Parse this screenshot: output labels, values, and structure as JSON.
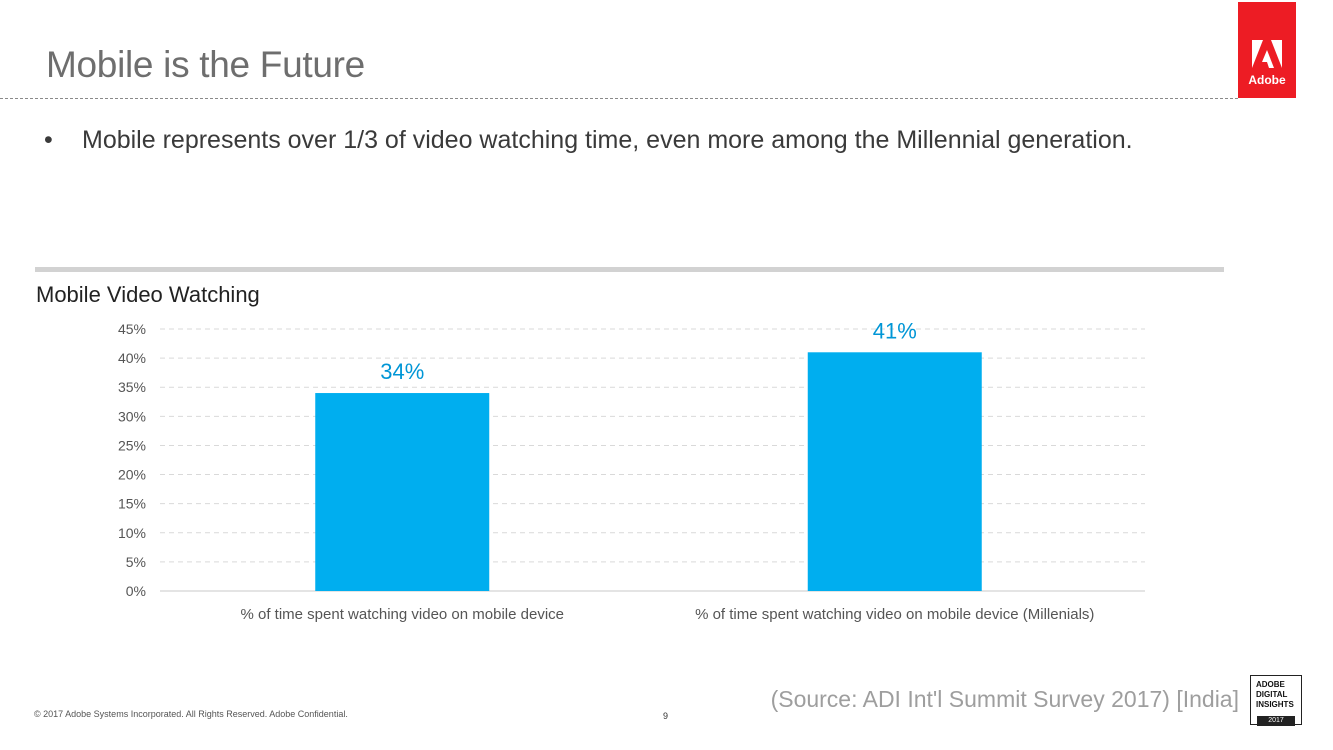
{
  "slide": {
    "title": "Mobile is the Future",
    "bullet": "Mobile represents over 1/3 of video watching time, even more among the Millennial generation.",
    "logo_text": "Adobe",
    "footer": "© 2017 Adobe Systems Incorporated.  All Rights Reserved.  Adobe Confidential.",
    "page_number": "9",
    "source": "(Source: ADI Int'l Summit Survey 2017) [India]",
    "badge_line1": "ADOBE",
    "badge_line2": "DIGITAL",
    "badge_line3": "INSIGHTS",
    "badge_year": "2017",
    "accent_color": "#ed1c24"
  },
  "chart_data": {
    "type": "bar",
    "title": "Mobile Video Watching",
    "categories": [
      "% of time spent watching video on mobile device",
      "% of time spent watching video on mobile device (Millenials)"
    ],
    "values": [
      34,
      41
    ],
    "data_labels": [
      "34%",
      "41%"
    ],
    "y_ticks": [
      "0%",
      "5%",
      "10%",
      "15%",
      "20%",
      "25%",
      "30%",
      "35%",
      "40%",
      "45%"
    ],
    "ylim": [
      0,
      45
    ],
    "grid": true,
    "bar_color": "#00aeef",
    "label_color": "#0096d6"
  }
}
